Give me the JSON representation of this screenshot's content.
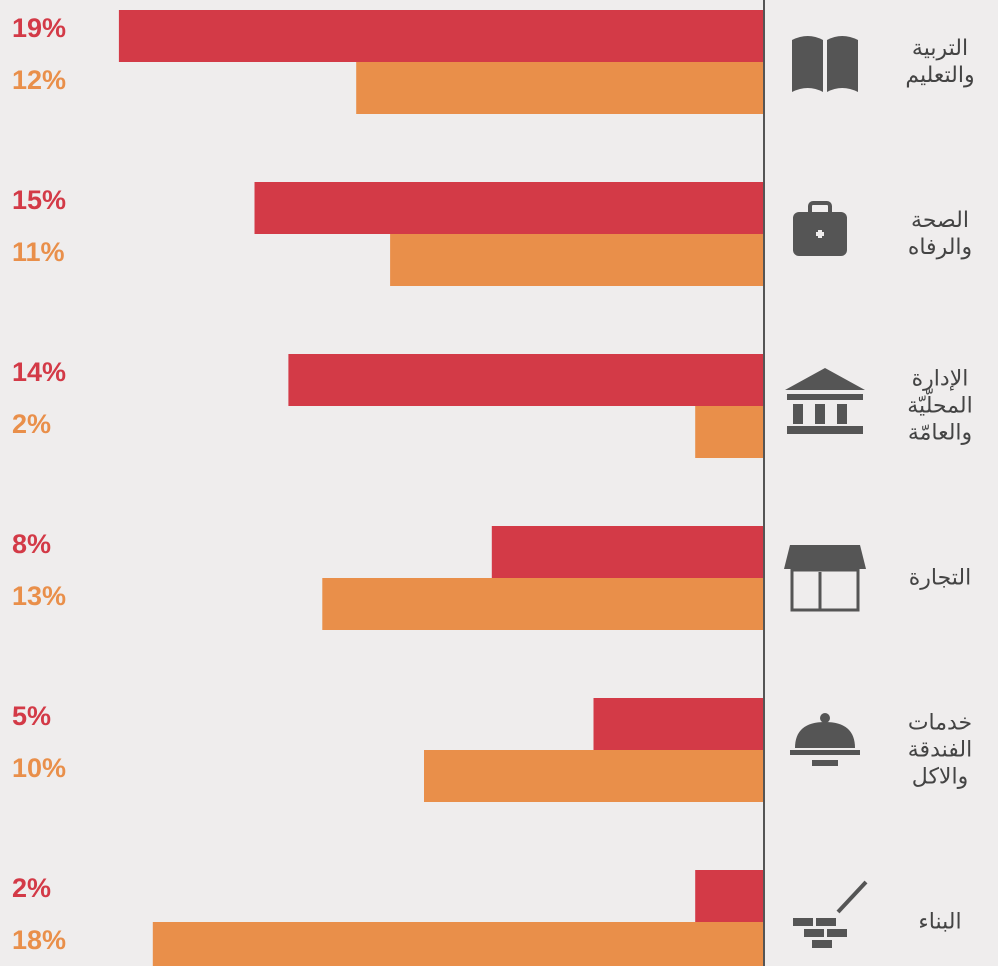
{
  "chart_data": {
    "type": "hbar",
    "categories": [
      "التربية\nوالتعليم",
      "الصحة\nوالرفاه",
      "الإدارة\nالمحلّيّة\nوالعامّة",
      "التجارة",
      "خدمات\nالفندقة\nوالاكل",
      "البناء"
    ],
    "series": [
      {
        "color": "#d33a47",
        "values": [
          19,
          15,
          14,
          8,
          5,
          2
        ],
        "value_labels": [
          "19%",
          "15%",
          "14%",
          "8%",
          "5%",
          "2%"
        ]
      },
      {
        "color": "#e98f4a",
        "values": [
          12,
          11,
          2,
          13,
          10,
          18
        ],
        "value_labels": [
          "12%",
          "11%",
          "2%",
          "13%",
          "10%",
          "18%"
        ]
      }
    ],
    "xlim": [
      0,
      20
    ]
  }
}
